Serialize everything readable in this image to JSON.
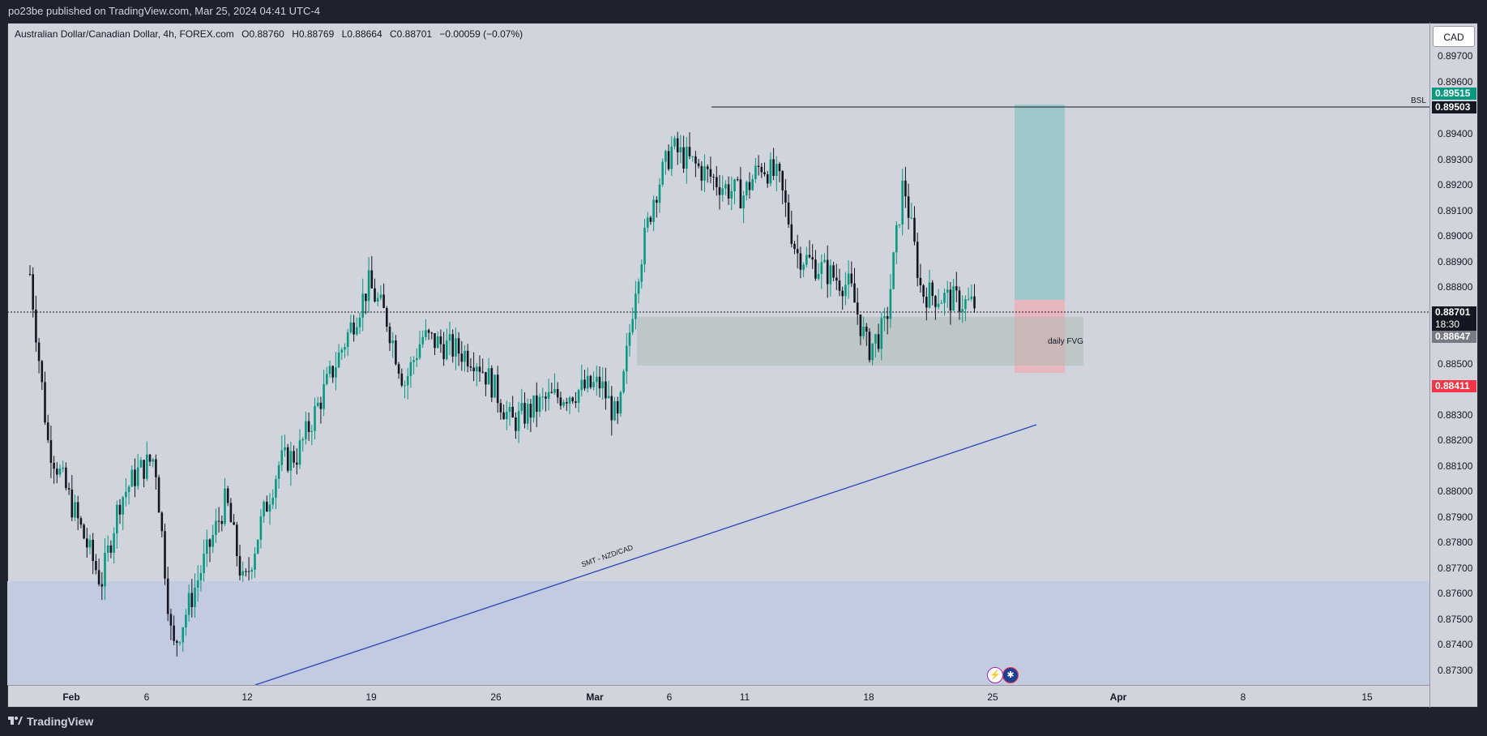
{
  "header": {
    "published": "po23be published on TradingView.com, Mar 25, 2024 04:41 UTC-4"
  },
  "legend": {
    "symbol": "Australian Dollar/Canadian Dollar, 4h, FOREX.com",
    "open": "O0.88760",
    "high": "H0.88769",
    "low": "L0.88664",
    "close": "C0.88701",
    "change": "−0.00059 (−0.07%)"
  },
  "currency_button": "CAD",
  "price_axis": {
    "labels": [
      "0.89700",
      "0.89600",
      "0.89400",
      "0.89300",
      "0.89200",
      "0.89100",
      "0.89000",
      "0.88900",
      "0.88800",
      "0.88500",
      "0.88300",
      "0.88200",
      "0.88100",
      "0.88000",
      "0.87900",
      "0.87800",
      "0.87700",
      "0.87600",
      "0.87500",
      "0.87400",
      "0.87300"
    ],
    "tags": {
      "take_profit": "0.89515",
      "bsl": "0.89503",
      "current": "0.88701",
      "countdown": "18:30",
      "entry": "0.88647",
      "stop": "0.88411"
    }
  },
  "time_axis": {
    "labels": [
      "Feb",
      "6",
      "12",
      "19",
      "26",
      "Mar",
      "6",
      "11",
      "18",
      "25",
      "Apr",
      "8",
      "15"
    ]
  },
  "annotations": {
    "bsl": "BSL",
    "fvg": "daily FVG",
    "smt": "SMT - NZD/CAD"
  },
  "footer": {
    "brand": "TradingView"
  },
  "colors": {
    "up": "#089981",
    "down": "#131722",
    "tp_zone": "#4db6ac",
    "sl_zone": "#f7a1ab",
    "trend": "#2846b8",
    "bg": "#d1d4dc"
  },
  "chart_data": {
    "type": "candlestick",
    "title": "Australian Dollar/Canadian Dollar, 4h, FOREX.com",
    "ylim": [
      0.8725,
      0.8978
    ],
    "x_start": "Jan 31, 2024",
    "x_end": "Mar 25, 2024",
    "close_path": [
      {
        "x": "Feb 1",
        "y": 0.8882
      },
      {
        "x": "Feb 2",
        "y": 0.8818
      },
      {
        "x": "Feb 5",
        "y": 0.8764
      },
      {
        "x": "Feb 6",
        "y": 0.8795
      },
      {
        "x": "Feb 7",
        "y": 0.8806
      },
      {
        "x": "Feb 8",
        "y": 0.8812
      },
      {
        "x": "Feb 9",
        "y": 0.8738
      },
      {
        "x": "Feb 12",
        "y": 0.8796
      },
      {
        "x": "Feb 13",
        "y": 0.8762
      },
      {
        "x": "Feb 14",
        "y": 0.8788
      },
      {
        "x": "Feb 15",
        "y": 0.881
      },
      {
        "x": "Feb 16",
        "y": 0.8813
      },
      {
        "x": "Feb 20",
        "y": 0.8878
      },
      {
        "x": "Feb 21",
        "y": 0.8865
      },
      {
        "x": "Feb 22",
        "y": 0.884
      },
      {
        "x": "Feb 23",
        "y": 0.8858
      },
      {
        "x": "Feb 26",
        "y": 0.885
      },
      {
        "x": "Feb 27",
        "y": 0.8839
      },
      {
        "x": "Feb 28",
        "y": 0.8825
      },
      {
        "x": "Mar 1",
        "y": 0.8834
      },
      {
        "x": "Mar 4",
        "y": 0.884
      },
      {
        "x": "Mar 5",
        "y": 0.8825
      },
      {
        "x": "Mar 6",
        "y": 0.888
      },
      {
        "x": "Mar 7",
        "y": 0.8912
      },
      {
        "x": "Mar 8",
        "y": 0.893
      },
      {
        "x": "Mar 11",
        "y": 0.8915
      },
      {
        "x": "Mar 12",
        "y": 0.8912
      },
      {
        "x": "Mar 13",
        "y": 0.8924
      },
      {
        "x": "Mar 14",
        "y": 0.8918
      },
      {
        "x": "Mar 15",
        "y": 0.889
      },
      {
        "x": "Mar 18",
        "y": 0.8877
      },
      {
        "x": "Mar 19",
        "y": 0.8853
      },
      {
        "x": "Mar 20",
        "y": 0.8862
      },
      {
        "x": "Mar 21",
        "y": 0.8918
      },
      {
        "x": "Mar 22",
        "y": 0.8875
      },
      {
        "x": "Mar 25",
        "y": 0.88701
      }
    ],
    "levels": {
      "bsl": 0.89503,
      "take_profit": 0.89515,
      "entry": 0.88647,
      "stop": 0.88411,
      "fvg_top": 0.88666,
      "fvg_bottom": 0.88475,
      "last": 0.88701
    },
    "trendline": {
      "label": "SMT - NZD/CAD",
      "from": {
        "x": "Feb 12",
        "y": 0.8727
      },
      "to": {
        "x": "Mar 28",
        "y": 0.8826
      }
    }
  }
}
